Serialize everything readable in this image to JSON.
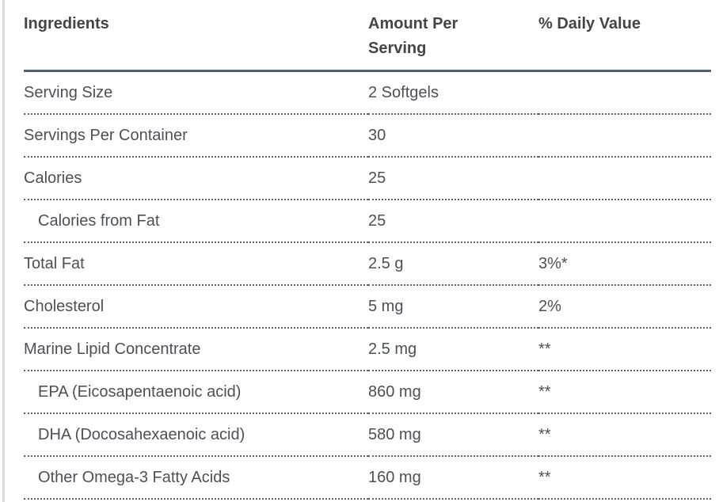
{
  "table": {
    "columns": [
      "Ingredients",
      "Amount Per Serving",
      "% Daily Value"
    ],
    "rows": [
      {
        "ingredient": "Serving Size",
        "amount": "2 Softgels",
        "daily_value": "",
        "indent": false
      },
      {
        "ingredient": "Servings Per Container",
        "amount": "30",
        "daily_value": "",
        "indent": false
      },
      {
        "ingredient": "Calories",
        "amount": "25",
        "daily_value": "",
        "indent": false
      },
      {
        "ingredient": "Calories from Fat",
        "amount": "25",
        "daily_value": "",
        "indent": true
      },
      {
        "ingredient": "Total Fat",
        "amount": "2.5 g",
        "daily_value": "3%*",
        "indent": false
      },
      {
        "ingredient": "Cholesterol",
        "amount": "5 mg",
        "daily_value": "2%",
        "indent": false
      },
      {
        "ingredient": "Marine Lipid Concentrate",
        "amount": "2.5 mg",
        "daily_value": "**",
        "indent": false
      },
      {
        "ingredient": "EPA (Eicosapentaenoic acid)",
        "amount": "860 mg",
        "daily_value": "**",
        "indent": true
      },
      {
        "ingredient": "DHA (Docosahexaenoic acid)",
        "amount": "580 mg",
        "daily_value": "**",
        "indent": true
      },
      {
        "ingredient": "Other Omega-3 Fatty Acids",
        "amount": "160 mg",
        "daily_value": "**",
        "indent": true
      }
    ]
  },
  "colors": {
    "header_text": "#454545",
    "body_text": "#4b5157",
    "header_rule": "#53616c",
    "row_rule": "#59646e",
    "page_edge": "#dcdcdc",
    "page_bg": "#ffffff"
  }
}
